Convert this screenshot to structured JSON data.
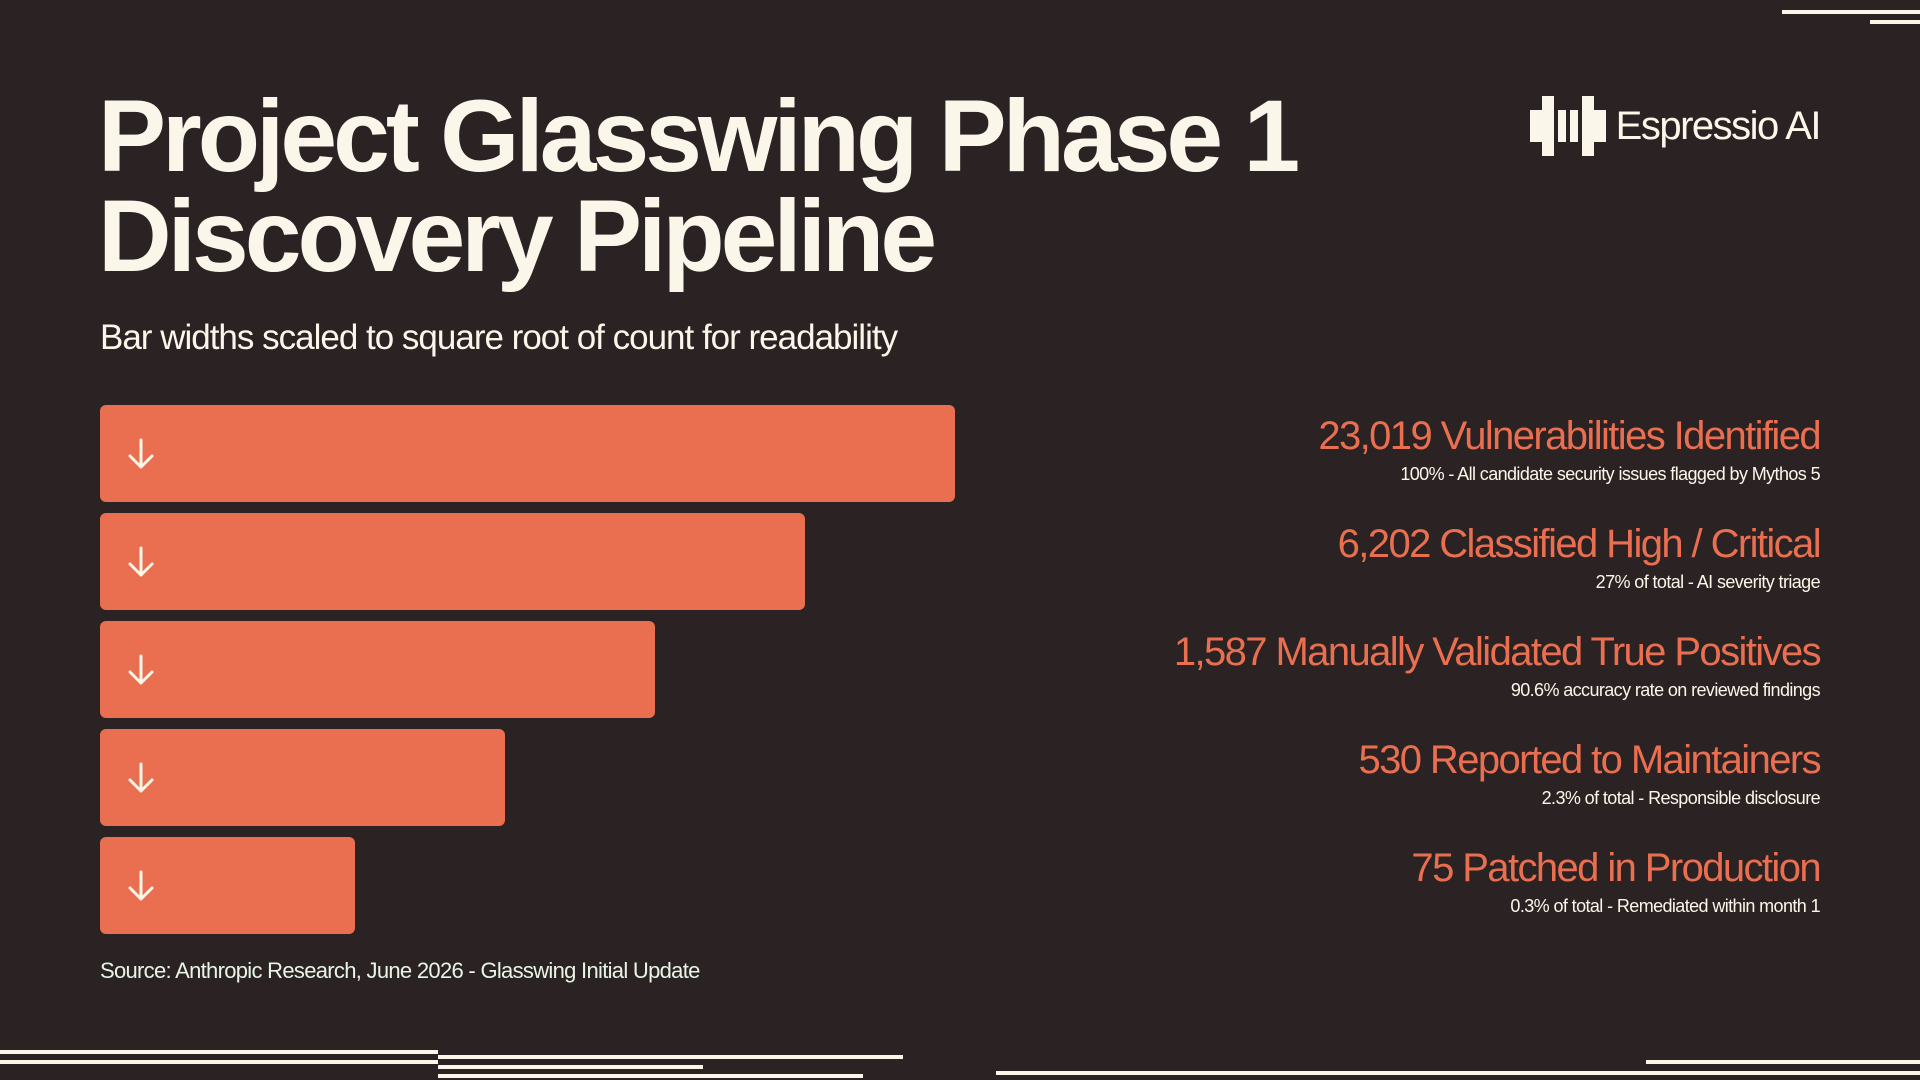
{
  "header": {
    "title_line1": "Project Glasswing Phase 1",
    "title_line2": "Discovery Pipeline",
    "subtitle": "Bar widths scaled to square root of count for readability"
  },
  "brand": {
    "name": "Espressio AI",
    "logo_icon": "espressio-logo-icon"
  },
  "colors": {
    "background": "#2b2323",
    "bar": "#e96f50",
    "text": "#fbf6ea"
  },
  "chart_data": {
    "type": "bar",
    "orientation": "horizontal-funnel",
    "categories": [
      "Vulnerabilities Identified",
      "Classified High / Critical",
      "Manually Validated True Positives",
      "Reported to Maintainers",
      "Patched in Production"
    ],
    "values": [
      23019,
      6202,
      1587,
      530,
      75
    ],
    "stages": [
      {
        "number": "23,019",
        "label": "Vulnerabilities Identified",
        "desc": "100% - All candidate security issues flagged by Mythos 5"
      },
      {
        "number": "6,202",
        "label": "Classified High / Critical",
        "desc": "27% of total - AI severity triage"
      },
      {
        "number": "1,587",
        "label": "Manually Validated True Positives",
        "desc": "90.6% accuracy rate on reviewed findings"
      },
      {
        "number": "530",
        "label": "Reported to Maintainers",
        "desc": "2.3% of total - Responsible disclosure"
      },
      {
        "number": "75",
        "label": "Patched in Production",
        "desc": "0.3% of total - Remediated within month 1"
      }
    ],
    "bar_icon": "arrow-down-icon",
    "source": "Source: Anthropic Research, June 2026 - Glasswing Initial Update"
  }
}
